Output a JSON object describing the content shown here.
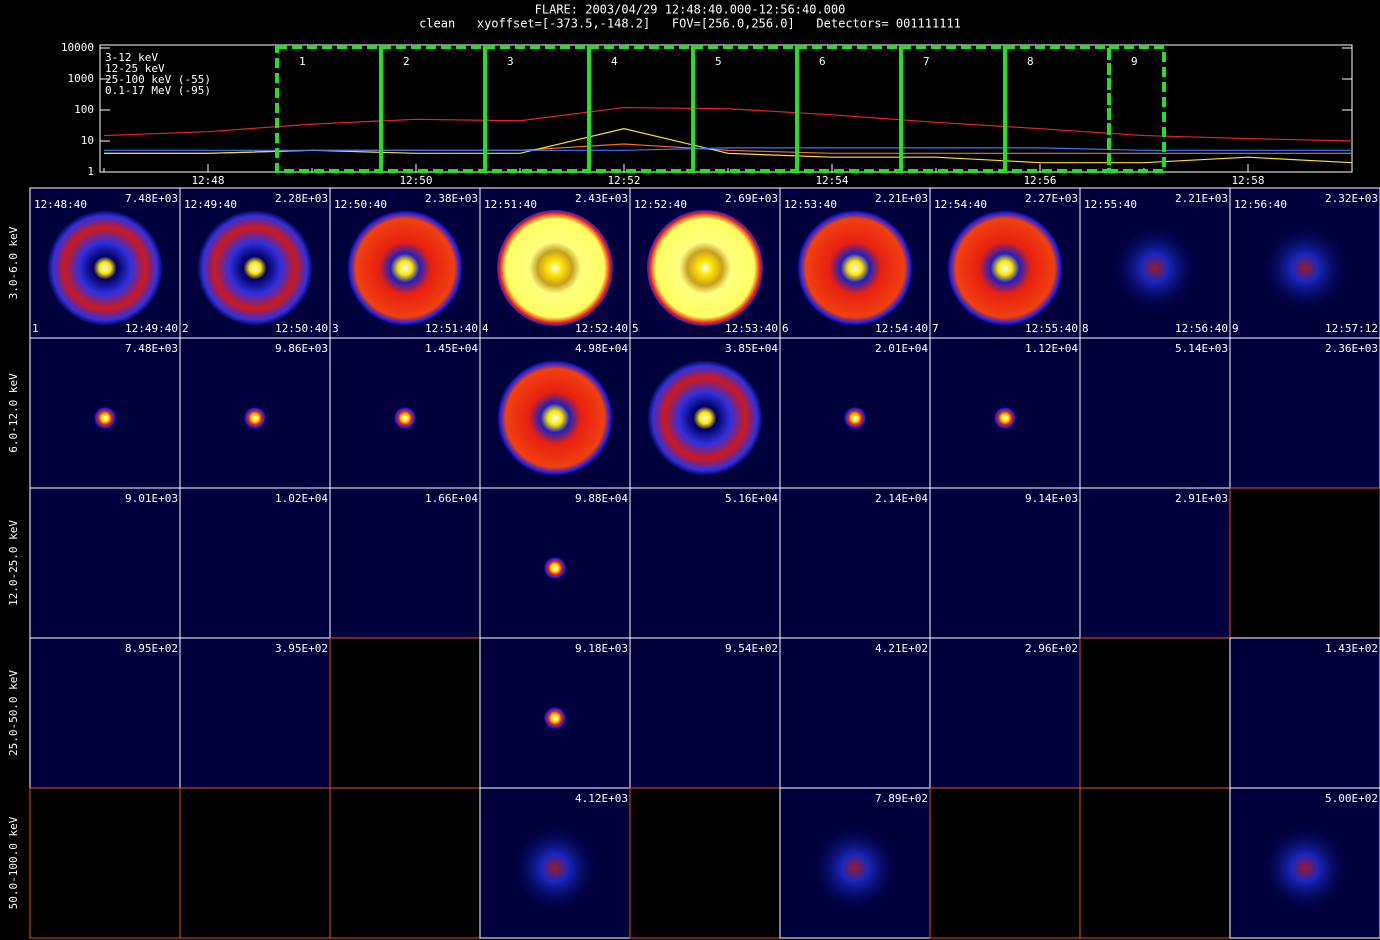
{
  "chart_data": {
    "type": "line",
    "title": "FLARE: 2003/04/29 12:48:40.000-12:56:40.000",
    "subtitle": "clean   xyoffset=[-373.5,-148.2]   FOV=[256.0,256.0]   Detectors= 001111111",
    "categories": [
      null,
      "12:48",
      null,
      "12:50",
      null,
      "12:52",
      null,
      "12:54",
      null,
      "12:56",
      null,
      "12:58",
      null
    ],
    "log_scale": true,
    "ylim": [
      1,
      10000
    ],
    "yticks": [
      1,
      10,
      100,
      1000,
      10000
    ],
    "series": [
      {
        "name": "3-12 keV",
        "color": "#e8261e",
        "values": [
          15,
          20,
          35,
          50,
          45,
          120,
          110,
          70,
          40,
          25,
          15,
          12,
          10
        ]
      },
      {
        "name": "12-25 keV",
        "color": "#ff6a2a",
        "values": [
          4,
          4,
          5,
          5,
          5,
          8,
          5,
          4,
          4,
          4,
          4,
          4,
          4
        ]
      },
      {
        "name": "25-100 keV (-55)",
        "color": "#ffe02a",
        "values": [
          4,
          4,
          5,
          4,
          4,
          25,
          4,
          3,
          3,
          2,
          2,
          3,
          2
        ]
      },
      {
        "name": "0.1-17 MeV (-95)",
        "color": "#3a78ff",
        "values": [
          5,
          5,
          5,
          5,
          5,
          5,
          6,
          6,
          6,
          6,
          5,
          5,
          5
        ]
      }
    ],
    "annotations": [
      "1",
      "2",
      "3",
      "4",
      "5",
      "6",
      "7",
      "8",
      "9"
    ]
  },
  "grid": {
    "row_labels": [
      "3.0-6.0 keV",
      "6.0-12.0 keV",
      "12.0-25.0 keV",
      "25.0-50.0 keV",
      "50.0-100.0 keV"
    ],
    "start_times": [
      "12:48:40",
      "12:49:40",
      "12:50:40",
      "12:51:40",
      "12:52:40",
      "12:53:40",
      "12:54:40",
      "12:55:40",
      "12:56:40"
    ],
    "end_times": [
      "12:49:40",
      "12:50:40",
      "12:51:40",
      "12:52:40",
      "12:53:40",
      "12:54:40",
      "12:55:40",
      "12:56:40",
      "12:57:12"
    ],
    "indices": [
      "1",
      "2",
      "3",
      "4",
      "5",
      "6",
      "7",
      "8",
      "9"
    ],
    "max_labels": [
      [
        "7.48E+03",
        "2.28E+03",
        "2.38E+03",
        "2.43E+03",
        "2.69E+03",
        "2.21E+03",
        "2.27E+03",
        "2.21E+03",
        "2.32E+03"
      ],
      [
        "7.48E+03",
        "9.86E+03",
        "1.45E+04",
        "4.98E+04",
        "3.85E+04",
        "2.01E+04",
        "1.12E+04",
        "5.14E+03",
        "2.36E+03"
      ],
      [
        "9.01E+03",
        "1.02E+04",
        "1.66E+04",
        "9.88E+04",
        "5.16E+04",
        "2.14E+04",
        "9.14E+03",
        "2.91E+03",
        null
      ],
      [
        "8.95E+02",
        "3.95E+02",
        null,
        "9.18E+03",
        "9.54E+02",
        "4.21E+02",
        "2.96E+02",
        null,
        "1.43E+02"
      ],
      [
        null,
        null,
        null,
        "4.12E+03",
        null,
        "7.89E+02",
        null,
        null,
        "5.00E+02"
      ]
    ]
  }
}
